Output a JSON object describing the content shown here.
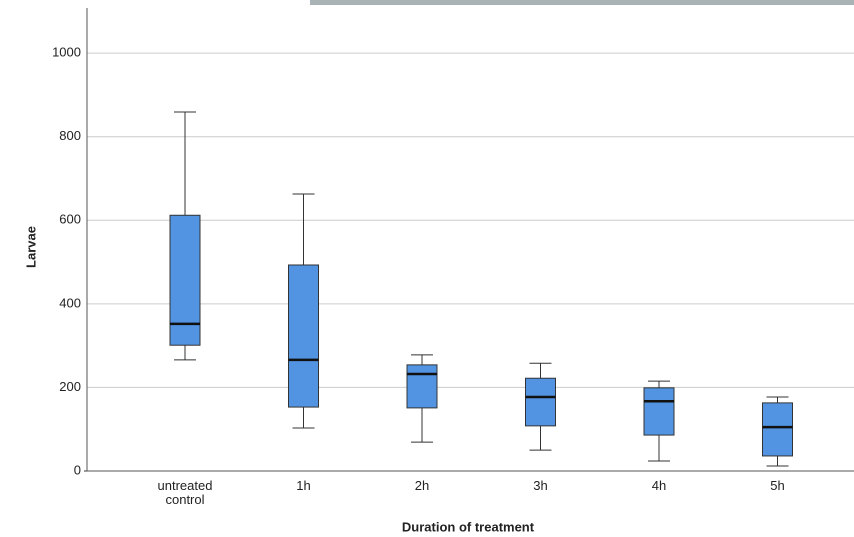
{
  "chart_data": {
    "type": "boxplot",
    "x_label": "Duration of treatment",
    "y_label": "Larvae",
    "categories": [
      "untreated control",
      "1h",
      "2h",
      "3h",
      "4h",
      "5h"
    ],
    "boxes": [
      {
        "min": 266,
        "q1": 301,
        "median": 352,
        "q3": 612,
        "max": 859
      },
      {
        "min": 103,
        "q1": 153,
        "median": 266,
        "q3": 493,
        "max": 663
      },
      {
        "min": 69,
        "q1": 151,
        "median": 232,
        "q3": 254,
        "max": 278
      },
      {
        "min": 50,
        "q1": 108,
        "median": 177,
        "q3": 222,
        "max": 258
      },
      {
        "min": 24,
        "q1": 86,
        "median": 167,
        "q3": 199,
        "max": 215
      },
      {
        "min": 12,
        "q1": 36,
        "median": 105,
        "q3": 163,
        "max": 177
      }
    ],
    "color": "#5294e2",
    "ylim": [
      0,
      1108
    ],
    "yticks": [
      0,
      200,
      400,
      600,
      800,
      1000
    ],
    "grid": true
  }
}
